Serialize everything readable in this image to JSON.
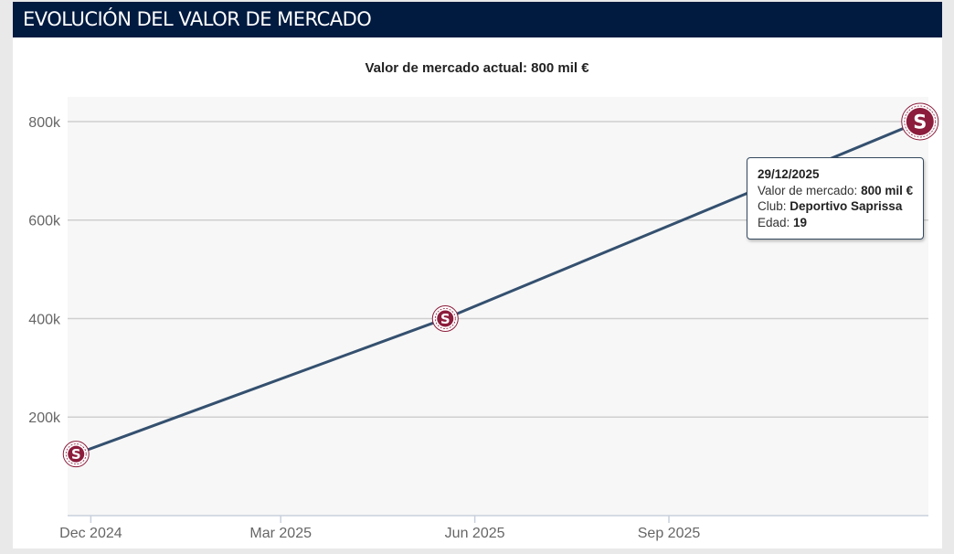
{
  "header": {
    "title": "EVOLUCIÓN DEL VALOR DE MERCADO"
  },
  "chart_data": {
    "type": "line",
    "title": "Valor de mercado actual: 800 mil €",
    "xlabel": "",
    "ylabel": "",
    "x_ticks": [
      "Dec 2024",
      "Mar 2025",
      "Jun 2025",
      "Sep 2025"
    ],
    "y_ticks": [
      "200k",
      "400k",
      "600k",
      "800k"
    ],
    "ylim": [
      0,
      850000
    ],
    "series": [
      {
        "name": "Valor de mercado",
        "color": "#34506f",
        "points": [
          {
            "date": "2024-11-24",
            "value": 125000,
            "marker": "club-crest-icon"
          },
          {
            "date": "2025-05-18",
            "value": 400000,
            "marker": "club-crest-icon"
          },
          {
            "date": "2025-12-29",
            "value": 800000,
            "marker": "club-crest-icon"
          }
        ]
      }
    ],
    "grid": true
  },
  "tooltip": {
    "date": "29/12/2025",
    "value_label": "Valor de mercado: ",
    "value": "800 mil €",
    "club_label": "Club: ",
    "club": "Deportivo Saprissa",
    "age_label": "Edad: ",
    "age": "19"
  },
  "colors": {
    "header_bg": "#001a40",
    "line": "#34506f",
    "crest": "#8c1d3c",
    "plot_bg": "#f7f7f7"
  }
}
